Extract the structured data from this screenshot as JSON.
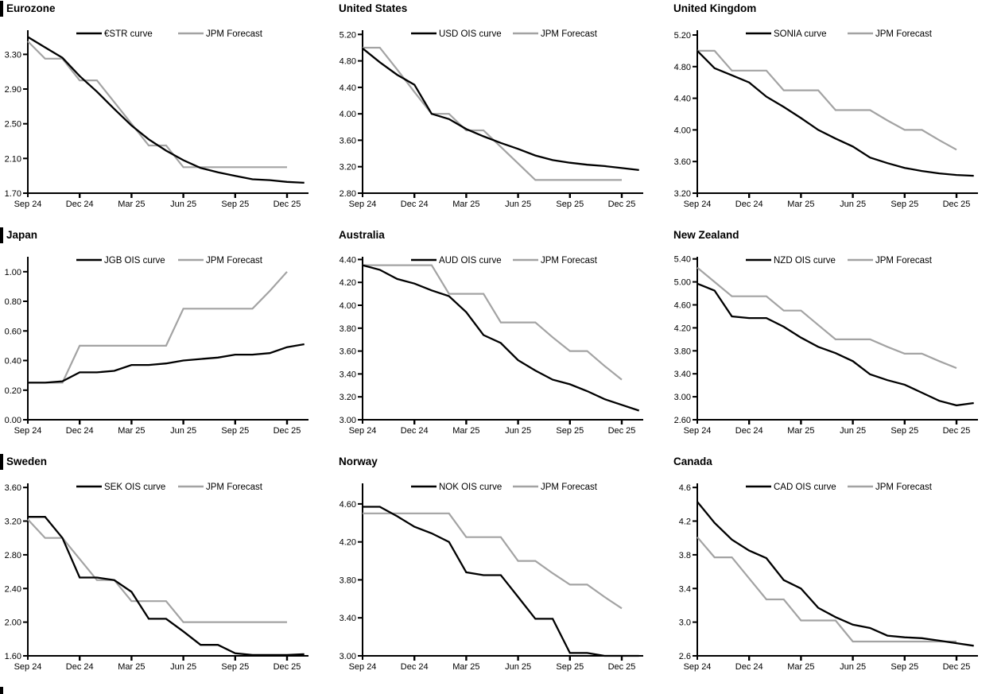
{
  "page": {
    "background": "#ffffff"
  },
  "colors": {
    "main_series": "#000000",
    "forecast_series": "#a3a3a3",
    "axis": "#000000",
    "text": "#000000"
  },
  "x_axis": {
    "tick_labels": [
      "Sep 24",
      "Dec 24",
      "Mar 25",
      "Jun 25",
      "Sep 25",
      "Dec 25"
    ],
    "interval": "monthly",
    "months_per_labeled_tick": 3
  },
  "forecast_legend_label": "JPM Forecast",
  "chart_data": [
    {
      "type": "line",
      "title": "Eurozone",
      "has_left_section_bar": true,
      "y_ticks": {
        "labels": [
          "1.70",
          "2.10",
          "2.50",
          "2.90",
          "3.30"
        ],
        "values": [
          1.7,
          2.1,
          2.5,
          2.9,
          3.3
        ]
      },
      "ylim": [
        1.7,
        3.56
      ],
      "series": [
        {
          "name": "€STR curve",
          "role": "main",
          "values": [
            3.5,
            3.38,
            3.26,
            3.05,
            2.87,
            2.67,
            2.48,
            2.32,
            2.19,
            2.08,
            1.99,
            1.94,
            1.9,
            1.86,
            1.85,
            1.83,
            1.82
          ]
        },
        {
          "name": "JPM Forecast",
          "role": "forecast",
          "values": [
            3.45,
            3.25,
            3.25,
            3.0,
            3.0,
            2.75,
            2.5,
            2.25,
            2.25,
            2.0,
            2.0,
            2.0,
            2.0,
            2.0,
            2.0,
            2.0
          ]
        }
      ]
    },
    {
      "type": "line",
      "title": "United States",
      "has_left_section_bar": false,
      "y_ticks": {
        "labels": [
          "2.80",
          "3.20",
          "3.60",
          "4.00",
          "4.40",
          "4.80",
          "5.20"
        ],
        "values": [
          2.8,
          3.2,
          3.6,
          4.0,
          4.4,
          4.8,
          5.2
        ]
      },
      "ylim": [
        2.8,
        5.24
      ],
      "series": [
        {
          "name": "USD OIS curve",
          "role": "main",
          "values": [
            4.99,
            4.78,
            4.59,
            4.44,
            4.0,
            3.92,
            3.77,
            3.66,
            3.56,
            3.47,
            3.37,
            3.3,
            3.26,
            3.23,
            3.21,
            3.18,
            3.15
          ]
        },
        {
          "name": "JPM Forecast",
          "role": "forecast",
          "values": [
            5.0,
            5.0,
            4.67,
            4.33,
            4.0,
            4.0,
            3.75,
            3.75,
            3.5,
            3.25,
            3.0,
            3.0,
            3.0,
            3.0,
            3.0,
            3.0
          ]
        }
      ]
    },
    {
      "type": "line",
      "title": "United Kingdom",
      "has_left_section_bar": false,
      "y_ticks": {
        "labels": [
          "3.20",
          "3.60",
          "4.00",
          "4.40",
          "4.80",
          "5.20"
        ],
        "values": [
          3.2,
          3.6,
          4.0,
          4.4,
          4.8,
          5.2
        ]
      },
      "ylim": [
        3.2,
        5.24
      ],
      "series": [
        {
          "name": "SONIA curve",
          "role": "main",
          "values": [
            5.0,
            4.78,
            4.69,
            4.6,
            4.42,
            4.29,
            4.15,
            4.0,
            3.89,
            3.79,
            3.65,
            3.58,
            3.52,
            3.48,
            3.45,
            3.43,
            3.42
          ]
        },
        {
          "name": "JPM Forecast",
          "role": "forecast",
          "values": [
            5.0,
            5.0,
            4.75,
            4.75,
            4.75,
            4.5,
            4.5,
            4.5,
            4.25,
            4.25,
            4.25,
            4.12,
            4.0,
            4.0,
            3.87,
            3.75
          ]
        }
      ]
    },
    {
      "type": "line",
      "title": "Japan",
      "has_left_section_bar": true,
      "y_ticks": {
        "labels": [
          "0.00",
          "0.20",
          "0.40",
          "0.60",
          "0.80",
          "1.00"
        ],
        "values": [
          0.0,
          0.2,
          0.4,
          0.6,
          0.8,
          1.0
        ]
      },
      "ylim": [
        0.0,
        1.09
      ],
      "series": [
        {
          "name": "JGB OIS curve",
          "role": "main",
          "values": [
            0.25,
            0.25,
            0.26,
            0.32,
            0.32,
            0.33,
            0.37,
            0.37,
            0.38,
            0.4,
            0.41,
            0.42,
            0.44,
            0.44,
            0.45,
            0.49,
            0.51
          ]
        },
        {
          "name": "JPM Forecast",
          "role": "forecast",
          "values": [
            0.25,
            0.25,
            0.25,
            0.5,
            0.5,
            0.5,
            0.5,
            0.5,
            0.5,
            0.75,
            0.75,
            0.75,
            0.75,
            0.75,
            0.87,
            1.0
          ]
        }
      ]
    },
    {
      "type": "line",
      "title": "Australia",
      "has_left_section_bar": false,
      "y_ticks": {
        "labels": [
          "3.00",
          "3.20",
          "3.40",
          "3.60",
          "3.80",
          "4.00",
          "4.20",
          "4.40"
        ],
        "values": [
          3.0,
          3.2,
          3.4,
          3.6,
          3.8,
          4.0,
          4.2,
          4.4
        ]
      },
      "ylim": [
        3.0,
        4.41
      ],
      "series": [
        {
          "name": "AUD OIS curve",
          "role": "main",
          "values": [
            4.35,
            4.31,
            4.23,
            4.19,
            4.13,
            4.08,
            3.94,
            3.74,
            3.67,
            3.52,
            3.43,
            3.35,
            3.31,
            3.25,
            3.18,
            3.13,
            3.08
          ]
        },
        {
          "name": "JPM Forecast",
          "role": "forecast",
          "values": [
            4.35,
            4.35,
            4.35,
            4.35,
            4.35,
            4.1,
            4.1,
            4.1,
            3.85,
            3.85,
            3.85,
            3.72,
            3.6,
            3.6,
            3.47,
            3.35
          ]
        }
      ]
    },
    {
      "type": "line",
      "title": "New Zealand",
      "has_left_section_bar": false,
      "y_ticks": {
        "labels": [
          "2.60",
          "3.00",
          "3.40",
          "3.80",
          "4.20",
          "4.60",
          "5.00",
          "5.40"
        ],
        "values": [
          2.6,
          3.0,
          3.4,
          3.8,
          4.2,
          4.6,
          5.0,
          5.4
        ]
      },
      "ylim": [
        2.6,
        5.41
      ],
      "series": [
        {
          "name": "NZD OIS curve",
          "role": "main",
          "values": [
            4.97,
            4.85,
            4.4,
            4.37,
            4.37,
            4.22,
            4.03,
            3.87,
            3.76,
            3.62,
            3.39,
            3.29,
            3.21,
            3.07,
            2.93,
            2.85,
            2.89
          ]
        },
        {
          "name": "JPM Forecast",
          "role": "forecast",
          "values": [
            5.25,
            5.0,
            4.75,
            4.75,
            4.75,
            4.5,
            4.5,
            4.25,
            4.0,
            4.0,
            4.0,
            3.87,
            3.75,
            3.75,
            3.62,
            3.5
          ]
        }
      ]
    },
    {
      "type": "line",
      "title": "Sweden",
      "has_left_section_bar": true,
      "y_ticks": {
        "labels": [
          "1.60",
          "2.00",
          "2.40",
          "2.80",
          "3.20",
          "3.60"
        ],
        "values": [
          1.6,
          2.0,
          2.4,
          2.8,
          3.2,
          3.6
        ]
      },
      "ylim": [
        1.6,
        3.63
      ],
      "series": [
        {
          "name": "SEK OIS curve",
          "role": "main",
          "values": [
            3.25,
            3.25,
            3.0,
            2.53,
            2.53,
            2.5,
            2.36,
            2.04,
            2.04,
            1.89,
            1.73,
            1.73,
            1.63,
            1.61,
            1.61,
            1.61,
            1.62
          ]
        },
        {
          "name": "JPM Forecast",
          "role": "forecast",
          "values": [
            3.22,
            3.0,
            3.0,
            2.75,
            2.5,
            2.5,
            2.25,
            2.25,
            2.25,
            2.0,
            2.0,
            2.0,
            2.0,
            2.0,
            2.0,
            2.0
          ]
        }
      ]
    },
    {
      "type": "line",
      "title": "Norway",
      "has_left_section_bar": false,
      "y_ticks": {
        "labels": [
          "3.00",
          "3.40",
          "3.80",
          "4.20",
          "4.60"
        ],
        "values": [
          3.0,
          3.4,
          3.8,
          4.2,
          4.6
        ]
      },
      "ylim": [
        3.0,
        4.8
      ],
      "series": [
        {
          "name": "NOK OIS curve",
          "role": "main",
          "values": [
            4.57,
            4.57,
            4.47,
            4.36,
            4.29,
            4.2,
            3.88,
            3.85,
            3.85,
            3.62,
            3.39,
            3.39,
            3.03,
            3.03,
            3.0,
            3.0,
            3.0
          ]
        },
        {
          "name": "JPM Forecast",
          "role": "forecast",
          "values": [
            4.5,
            4.5,
            4.5,
            4.5,
            4.5,
            4.5,
            4.25,
            4.25,
            4.25,
            4.0,
            4.0,
            3.87,
            3.75,
            3.75,
            3.62,
            3.5
          ]
        }
      ]
    },
    {
      "type": "line",
      "title": "Canada",
      "has_left_section_bar": false,
      "y_ticks": {
        "labels": [
          "2.6",
          "3.0",
          "3.4",
          "3.8",
          "4.2",
          "4.6"
        ],
        "values": [
          2.6,
          3.0,
          3.4,
          3.8,
          4.2,
          4.6
        ]
      },
      "ylim": [
        2.6,
        4.63
      ],
      "series": [
        {
          "name": "CAD OIS curve",
          "role": "main",
          "values": [
            4.43,
            4.18,
            3.98,
            3.85,
            3.76,
            3.5,
            3.4,
            3.17,
            3.06,
            2.97,
            2.93,
            2.84,
            2.82,
            2.81,
            2.78,
            2.75,
            2.72
          ]
        },
        {
          "name": "JPM Forecast",
          "role": "forecast",
          "values": [
            4.01,
            3.77,
            3.77,
            3.52,
            3.27,
            3.27,
            3.02,
            3.02,
            3.02,
            2.77,
            2.77,
            2.77,
            2.77,
            2.77,
            2.77,
            2.77
          ]
        }
      ]
    }
  ]
}
